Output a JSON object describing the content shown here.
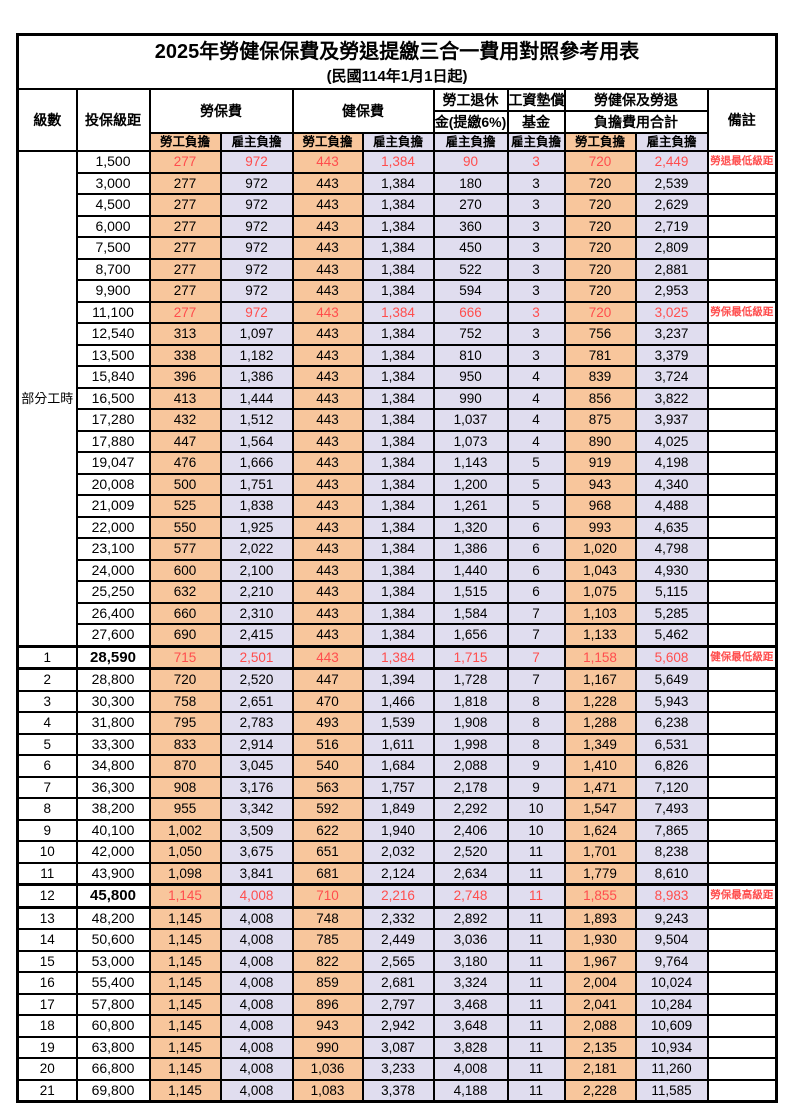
{
  "title": "2025年勞健保保費及勞退提繳三合一費用對照參考用表",
  "subtitle": "(民國114年1月1日起)",
  "colors": {
    "worker_column_bg": "#F8C69C",
    "employer_column_bg": "#E0DDEF",
    "highlight_text": "#FF4D4D",
    "border": "#000000"
  },
  "header": {
    "grade": "級數",
    "bracket": "投保級距",
    "labor_insurance": "勞保費",
    "health_insurance": "健保費",
    "pension_line1": "勞工退休",
    "pension_line2": "金(提繳6%)",
    "wage_fund_line1": "工資墊償",
    "wage_fund_line2": "基金",
    "total_line1": "勞健保及勞退",
    "total_line2": "負擔費用合計",
    "note": "備註",
    "worker": "勞工負擔",
    "employer": "雇主負擔"
  },
  "part_time_label": "部分工時",
  "part_time_span": 23,
  "column_keys": [
    "labor_worker",
    "labor_employer",
    "health_worker",
    "health_employer",
    "pension_employer",
    "fund_employer",
    "total_worker",
    "total_employer"
  ],
  "rows": [
    {
      "grade": "",
      "bracket": "1,500",
      "values": [
        "277",
        "972",
        "443",
        "1,384",
        "90",
        "3",
        "720",
        "2,449"
      ],
      "note": "勞退最低級距",
      "highlight": true,
      "bold_bracket": false,
      "thick": false
    },
    {
      "grade": "",
      "bracket": "3,000",
      "values": [
        "277",
        "972",
        "443",
        "1,384",
        "180",
        "3",
        "720",
        "2,539"
      ],
      "note": "",
      "highlight": false,
      "bold_bracket": false,
      "thick": false
    },
    {
      "grade": "",
      "bracket": "4,500",
      "values": [
        "277",
        "972",
        "443",
        "1,384",
        "270",
        "3",
        "720",
        "2,629"
      ],
      "note": "",
      "highlight": false,
      "bold_bracket": false,
      "thick": false
    },
    {
      "grade": "",
      "bracket": "6,000",
      "values": [
        "277",
        "972",
        "443",
        "1,384",
        "360",
        "3",
        "720",
        "2,719"
      ],
      "note": "",
      "highlight": false,
      "bold_bracket": false,
      "thick": false
    },
    {
      "grade": "",
      "bracket": "7,500",
      "values": [
        "277",
        "972",
        "443",
        "1,384",
        "450",
        "3",
        "720",
        "2,809"
      ],
      "note": "",
      "highlight": false,
      "bold_bracket": false,
      "thick": false
    },
    {
      "grade": "",
      "bracket": "8,700",
      "values": [
        "277",
        "972",
        "443",
        "1,384",
        "522",
        "3",
        "720",
        "2,881"
      ],
      "note": "",
      "highlight": false,
      "bold_bracket": false,
      "thick": false
    },
    {
      "grade": "",
      "bracket": "9,900",
      "values": [
        "277",
        "972",
        "443",
        "1,384",
        "594",
        "3",
        "720",
        "2,953"
      ],
      "note": "",
      "highlight": false,
      "bold_bracket": false,
      "thick": false
    },
    {
      "grade": "",
      "bracket": "11,100",
      "values": [
        "277",
        "972",
        "443",
        "1,384",
        "666",
        "3",
        "720",
        "3,025"
      ],
      "note": "勞保最低級距",
      "highlight": true,
      "bold_bracket": false,
      "thick": false
    },
    {
      "grade": "",
      "bracket": "12,540",
      "values": [
        "313",
        "1,097",
        "443",
        "1,384",
        "752",
        "3",
        "756",
        "3,237"
      ],
      "note": "",
      "highlight": false,
      "bold_bracket": false,
      "thick": false
    },
    {
      "grade": "",
      "bracket": "13,500",
      "values": [
        "338",
        "1,182",
        "443",
        "1,384",
        "810",
        "3",
        "781",
        "3,379"
      ],
      "note": "",
      "highlight": false,
      "bold_bracket": false,
      "thick": false
    },
    {
      "grade": "",
      "bracket": "15,840",
      "values": [
        "396",
        "1,386",
        "443",
        "1,384",
        "950",
        "4",
        "839",
        "3,724"
      ],
      "note": "",
      "highlight": false,
      "bold_bracket": false,
      "thick": false
    },
    {
      "grade": "",
      "bracket": "16,500",
      "values": [
        "413",
        "1,444",
        "443",
        "1,384",
        "990",
        "4",
        "856",
        "3,822"
      ],
      "note": "",
      "highlight": false,
      "bold_bracket": false,
      "thick": false
    },
    {
      "grade": "",
      "bracket": "17,280",
      "values": [
        "432",
        "1,512",
        "443",
        "1,384",
        "1,037",
        "4",
        "875",
        "3,937"
      ],
      "note": "",
      "highlight": false,
      "bold_bracket": false,
      "thick": false
    },
    {
      "grade": "",
      "bracket": "17,880",
      "values": [
        "447",
        "1,564",
        "443",
        "1,384",
        "1,073",
        "4",
        "890",
        "4,025"
      ],
      "note": "",
      "highlight": false,
      "bold_bracket": false,
      "thick": false
    },
    {
      "grade": "",
      "bracket": "19,047",
      "values": [
        "476",
        "1,666",
        "443",
        "1,384",
        "1,143",
        "5",
        "919",
        "4,198"
      ],
      "note": "",
      "highlight": false,
      "bold_bracket": false,
      "thick": false
    },
    {
      "grade": "",
      "bracket": "20,008",
      "values": [
        "500",
        "1,751",
        "443",
        "1,384",
        "1,200",
        "5",
        "943",
        "4,340"
      ],
      "note": "",
      "highlight": false,
      "bold_bracket": false,
      "thick": false
    },
    {
      "grade": "",
      "bracket": "21,009",
      "values": [
        "525",
        "1,838",
        "443",
        "1,384",
        "1,261",
        "5",
        "968",
        "4,488"
      ],
      "note": "",
      "highlight": false,
      "bold_bracket": false,
      "thick": false
    },
    {
      "grade": "",
      "bracket": "22,000",
      "values": [
        "550",
        "1,925",
        "443",
        "1,384",
        "1,320",
        "6",
        "993",
        "4,635"
      ],
      "note": "",
      "highlight": false,
      "bold_bracket": false,
      "thick": false
    },
    {
      "grade": "",
      "bracket": "23,100",
      "values": [
        "577",
        "2,022",
        "443",
        "1,384",
        "1,386",
        "6",
        "1,020",
        "4,798"
      ],
      "note": "",
      "highlight": false,
      "bold_bracket": false,
      "thick": false
    },
    {
      "grade": "",
      "bracket": "24,000",
      "values": [
        "600",
        "2,100",
        "443",
        "1,384",
        "1,440",
        "6",
        "1,043",
        "4,930"
      ],
      "note": "",
      "highlight": false,
      "bold_bracket": false,
      "thick": false
    },
    {
      "grade": "",
      "bracket": "25,250",
      "values": [
        "632",
        "2,210",
        "443",
        "1,384",
        "1,515",
        "6",
        "1,075",
        "5,115"
      ],
      "note": "",
      "highlight": false,
      "bold_bracket": false,
      "thick": false
    },
    {
      "grade": "",
      "bracket": "26,400",
      "values": [
        "660",
        "2,310",
        "443",
        "1,384",
        "1,584",
        "7",
        "1,103",
        "5,285"
      ],
      "note": "",
      "highlight": false,
      "bold_bracket": false,
      "thick": false
    },
    {
      "grade": "",
      "bracket": "27,600",
      "values": [
        "690",
        "2,415",
        "443",
        "1,384",
        "1,656",
        "7",
        "1,133",
        "5,462"
      ],
      "note": "",
      "highlight": false,
      "bold_bracket": false,
      "thick": false
    },
    {
      "grade": "1",
      "bracket": "28,590",
      "values": [
        "715",
        "2,501",
        "443",
        "1,384",
        "1,715",
        "7",
        "1,158",
        "5,608"
      ],
      "note": "健保最低級距",
      "highlight": true,
      "bold_bracket": true,
      "thick": true
    },
    {
      "grade": "2",
      "bracket": "28,800",
      "values": [
        "720",
        "2,520",
        "447",
        "1,394",
        "1,728",
        "7",
        "1,167",
        "5,649"
      ],
      "note": "",
      "highlight": false,
      "bold_bracket": false,
      "thick": false
    },
    {
      "grade": "3",
      "bracket": "30,300",
      "values": [
        "758",
        "2,651",
        "470",
        "1,466",
        "1,818",
        "8",
        "1,228",
        "5,943"
      ],
      "note": "",
      "highlight": false,
      "bold_bracket": false,
      "thick": false
    },
    {
      "grade": "4",
      "bracket": "31,800",
      "values": [
        "795",
        "2,783",
        "493",
        "1,539",
        "1,908",
        "8",
        "1,288",
        "6,238"
      ],
      "note": "",
      "highlight": false,
      "bold_bracket": false,
      "thick": false
    },
    {
      "grade": "5",
      "bracket": "33,300",
      "values": [
        "833",
        "2,914",
        "516",
        "1,611",
        "1,998",
        "8",
        "1,349",
        "6,531"
      ],
      "note": "",
      "highlight": false,
      "bold_bracket": false,
      "thick": false
    },
    {
      "grade": "6",
      "bracket": "34,800",
      "values": [
        "870",
        "3,045",
        "540",
        "1,684",
        "2,088",
        "9",
        "1,410",
        "6,826"
      ],
      "note": "",
      "highlight": false,
      "bold_bracket": false,
      "thick": false
    },
    {
      "grade": "7",
      "bracket": "36,300",
      "values": [
        "908",
        "3,176",
        "563",
        "1,757",
        "2,178",
        "9",
        "1,471",
        "7,120"
      ],
      "note": "",
      "highlight": false,
      "bold_bracket": false,
      "thick": false
    },
    {
      "grade": "8",
      "bracket": "38,200",
      "values": [
        "955",
        "3,342",
        "592",
        "1,849",
        "2,292",
        "10",
        "1,547",
        "7,493"
      ],
      "note": "",
      "highlight": false,
      "bold_bracket": false,
      "thick": false
    },
    {
      "grade": "9",
      "bracket": "40,100",
      "values": [
        "1,002",
        "3,509",
        "622",
        "1,940",
        "2,406",
        "10",
        "1,624",
        "7,865"
      ],
      "note": "",
      "highlight": false,
      "bold_bracket": false,
      "thick": false
    },
    {
      "grade": "10",
      "bracket": "42,000",
      "values": [
        "1,050",
        "3,675",
        "651",
        "2,032",
        "2,520",
        "11",
        "1,701",
        "8,238"
      ],
      "note": "",
      "highlight": false,
      "bold_bracket": false,
      "thick": false
    },
    {
      "grade": "11",
      "bracket": "43,900",
      "values": [
        "1,098",
        "3,841",
        "681",
        "2,124",
        "2,634",
        "11",
        "1,779",
        "8,610"
      ],
      "note": "",
      "highlight": false,
      "bold_bracket": false,
      "thick": false
    },
    {
      "grade": "12",
      "bracket": "45,800",
      "values": [
        "1,145",
        "4,008",
        "710",
        "2,216",
        "2,748",
        "11",
        "1,855",
        "8,983"
      ],
      "note": "勞保最高級距",
      "highlight": true,
      "bold_bracket": true,
      "thick": true
    },
    {
      "grade": "13",
      "bracket": "48,200",
      "values": [
        "1,145",
        "4,008",
        "748",
        "2,332",
        "2,892",
        "11",
        "1,893",
        "9,243"
      ],
      "note": "",
      "highlight": false,
      "bold_bracket": false,
      "thick": false
    },
    {
      "grade": "14",
      "bracket": "50,600",
      "values": [
        "1,145",
        "4,008",
        "785",
        "2,449",
        "3,036",
        "11",
        "1,930",
        "9,504"
      ],
      "note": "",
      "highlight": false,
      "bold_bracket": false,
      "thick": false
    },
    {
      "grade": "15",
      "bracket": "53,000",
      "values": [
        "1,145",
        "4,008",
        "822",
        "2,565",
        "3,180",
        "11",
        "1,967",
        "9,764"
      ],
      "note": "",
      "highlight": false,
      "bold_bracket": false,
      "thick": false
    },
    {
      "grade": "16",
      "bracket": "55,400",
      "values": [
        "1,145",
        "4,008",
        "859",
        "2,681",
        "3,324",
        "11",
        "2,004",
        "10,024"
      ],
      "note": "",
      "highlight": false,
      "bold_bracket": false,
      "thick": false
    },
    {
      "grade": "17",
      "bracket": "57,800",
      "values": [
        "1,145",
        "4,008",
        "896",
        "2,797",
        "3,468",
        "11",
        "2,041",
        "10,284"
      ],
      "note": "",
      "highlight": false,
      "bold_bracket": false,
      "thick": false
    },
    {
      "grade": "18",
      "bracket": "60,800",
      "values": [
        "1,145",
        "4,008",
        "943",
        "2,942",
        "3,648",
        "11",
        "2,088",
        "10,609"
      ],
      "note": "",
      "highlight": false,
      "bold_bracket": false,
      "thick": false
    },
    {
      "grade": "19",
      "bracket": "63,800",
      "values": [
        "1,145",
        "4,008",
        "990",
        "3,087",
        "3,828",
        "11",
        "2,135",
        "10,934"
      ],
      "note": "",
      "highlight": false,
      "bold_bracket": false,
      "thick": false
    },
    {
      "grade": "20",
      "bracket": "66,800",
      "values": [
        "1,145",
        "4,008",
        "1,036",
        "3,233",
        "4,008",
        "11",
        "2,181",
        "11,260"
      ],
      "note": "",
      "highlight": false,
      "bold_bracket": false,
      "thick": false
    },
    {
      "grade": "21",
      "bracket": "69,800",
      "values": [
        "1,145",
        "4,008",
        "1,083",
        "3,378",
        "4,188",
        "11",
        "2,228",
        "11,585"
      ],
      "note": "",
      "highlight": false,
      "bold_bracket": false,
      "thick": false
    }
  ]
}
